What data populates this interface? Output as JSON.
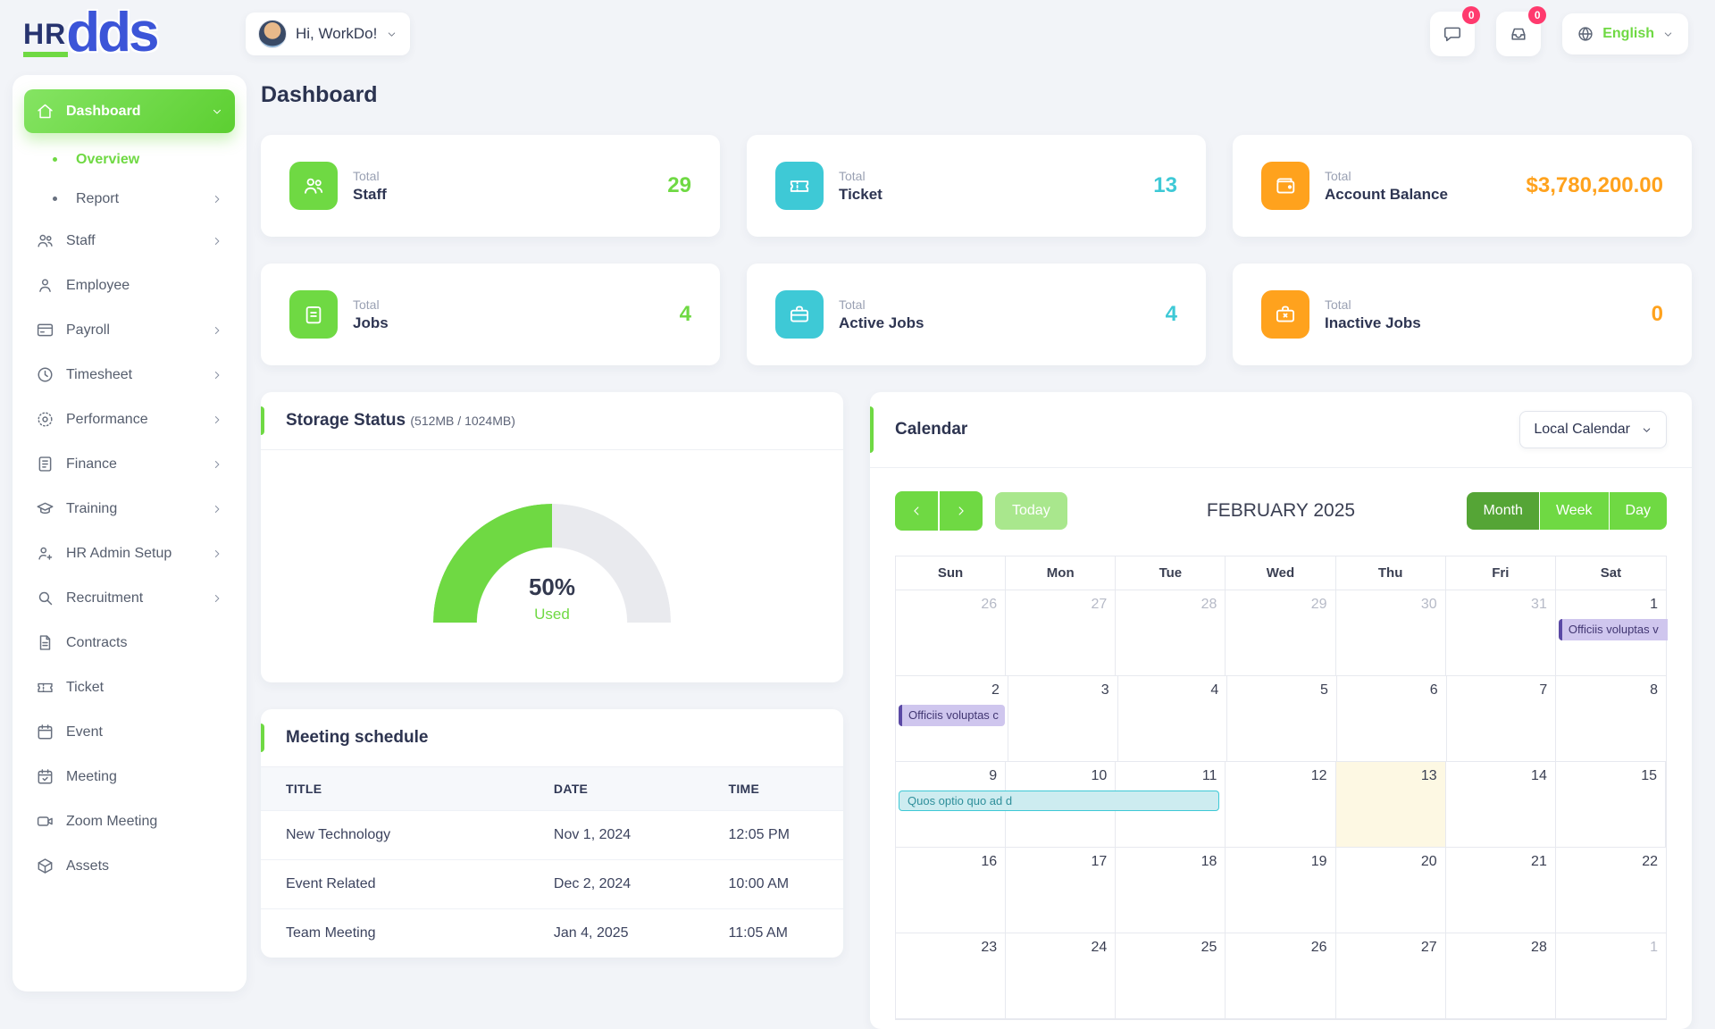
{
  "brand": {
    "part1": "HR",
    "part2": "dds"
  },
  "header": {
    "greeting": "Hi, WorkDo!",
    "messages_badge": "0",
    "notifications_badge": "0",
    "language": "English"
  },
  "page": {
    "title": "Dashboard"
  },
  "sidebar": {
    "items": [
      {
        "label": "Dashboard",
        "icon": "home-icon",
        "active": true,
        "chevron": "down"
      },
      {
        "label": "Overview",
        "icon": "bullet-icon",
        "sub": true,
        "active_sub": true
      },
      {
        "label": "Report",
        "icon": "bullet-icon",
        "sub": true,
        "chevron": "right"
      },
      {
        "label": "Staff",
        "icon": "staff-icon",
        "chevron": "right"
      },
      {
        "label": "Employee",
        "icon": "employee-icon"
      },
      {
        "label": "Payroll",
        "icon": "payroll-icon",
        "chevron": "right"
      },
      {
        "label": "Timesheet",
        "icon": "timesheet-icon",
        "chevron": "right"
      },
      {
        "label": "Performance",
        "icon": "performance-icon",
        "chevron": "right"
      },
      {
        "label": "Finance",
        "icon": "finance-icon",
        "chevron": "right"
      },
      {
        "label": "Training",
        "icon": "training-icon",
        "chevron": "right"
      },
      {
        "label": "HR Admin Setup",
        "icon": "hr-admin-icon",
        "chevron": "right"
      },
      {
        "label": "Recruitment",
        "icon": "recruitment-icon",
        "chevron": "right"
      },
      {
        "label": "Contracts",
        "icon": "contracts-icon"
      },
      {
        "label": "Ticket",
        "icon": "ticket-icon"
      },
      {
        "label": "Event",
        "icon": "event-icon"
      },
      {
        "label": "Meeting",
        "icon": "meeting-icon"
      },
      {
        "label": "Zoom Meeting",
        "icon": "zoom-icon"
      },
      {
        "label": "Assets",
        "icon": "assets-icon"
      }
    ]
  },
  "stats": [
    {
      "prefix": "Total",
      "label": "Staff",
      "value": "29",
      "color": "green",
      "icon": "staff-icon"
    },
    {
      "prefix": "Total",
      "label": "Ticket",
      "value": "13",
      "color": "cyan",
      "icon": "ticket-icon"
    },
    {
      "prefix": "Total",
      "label": "Account Balance",
      "value": "$3,780,200.00",
      "color": "orange",
      "icon": "wallet-icon"
    },
    {
      "prefix": "Total",
      "label": "Jobs",
      "value": "4",
      "color": "green",
      "icon": "jobs-icon"
    },
    {
      "prefix": "Total",
      "label": "Active Jobs",
      "value": "4",
      "color": "cyan",
      "icon": "active-jobs-icon"
    },
    {
      "prefix": "Total",
      "label": "Inactive Jobs",
      "value": "0",
      "color": "orange",
      "icon": "inactive-jobs-icon"
    }
  ],
  "storage": {
    "title": "Storage Status",
    "subtitle": "(512MB / 1024MB)",
    "percent": "50%",
    "used_label": "Used"
  },
  "meeting_schedule": {
    "title": "Meeting schedule",
    "columns": [
      "TITLE",
      "DATE",
      "TIME"
    ],
    "rows": [
      [
        "New Technology",
        "Nov 1, 2024",
        "12:05 PM"
      ],
      [
        "Event Related",
        "Dec 2, 2024",
        "10:00 AM"
      ],
      [
        "Team Meeting",
        "Jan 4, 2025",
        "11:05 AM"
      ]
    ]
  },
  "calendar": {
    "title": "Calendar",
    "selector_label": "Local Calendar",
    "today_label": "Today",
    "month_title": "FEBRUARY 2025",
    "views": [
      "Month",
      "Week",
      "Day"
    ],
    "active_view": "Month",
    "day_headers": [
      "Sun",
      "Mon",
      "Tue",
      "Wed",
      "Thu",
      "Fri",
      "Sat"
    ],
    "weeks": [
      {
        "days": [
          {
            "d": "26",
            "muted": true
          },
          {
            "d": "27",
            "muted": true
          },
          {
            "d": "28",
            "muted": true
          },
          {
            "d": "29",
            "muted": true
          },
          {
            "d": "30",
            "muted": true
          },
          {
            "d": "31",
            "muted": true
          },
          {
            "d": "1",
            "event": {
              "label": "Officiis voluptas v",
              "color": "purple",
              "bleed": true
            }
          }
        ]
      },
      {
        "days": [
          {
            "d": "2",
            "event": {
              "label": "Officiis voluptas c",
              "color": "purple"
            }
          },
          {
            "d": "3"
          },
          {
            "d": "4"
          },
          {
            "d": "5"
          },
          {
            "d": "6"
          },
          {
            "d": "7"
          },
          {
            "d": "8"
          }
        ]
      },
      {
        "days": [
          {
            "d": "9"
          },
          {
            "d": "10"
          },
          {
            "d": "11"
          },
          {
            "d": "12"
          },
          {
            "d": "13",
            "today": true
          },
          {
            "d": "14"
          },
          {
            "d": "15"
          }
        ],
        "span_event": {
          "label": "Quos optio quo ad d",
          "color": "cyan",
          "start": 0,
          "span": 3
        }
      },
      {
        "days": [
          {
            "d": "16"
          },
          {
            "d": "17"
          },
          {
            "d": "18"
          },
          {
            "d": "19"
          },
          {
            "d": "20"
          },
          {
            "d": "21"
          },
          {
            "d": "22"
          }
        ]
      },
      {
        "days": [
          {
            "d": "23"
          },
          {
            "d": "24"
          },
          {
            "d": "25"
          },
          {
            "d": "26"
          },
          {
            "d": "27"
          },
          {
            "d": "28"
          },
          {
            "d": "1",
            "muted": true
          }
        ]
      }
    ]
  },
  "colors": {
    "green": "#6fd943",
    "cyan": "#3ec9d6",
    "orange": "#ffa21d",
    "badge": "#ff3a6e"
  }
}
